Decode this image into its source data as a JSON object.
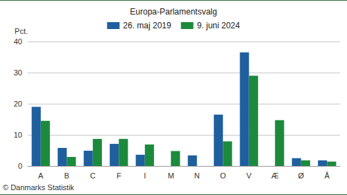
{
  "chart_data": {
    "type": "bar",
    "title": "Europa-Parlamentsvalg",
    "ylabel": "Pct.",
    "annotations": [
      "© Danmarks Statistik"
    ],
    "categories": [
      "A",
      "B",
      "C",
      "F",
      "I",
      "M",
      "N",
      "O",
      "V",
      "Æ",
      "Ø",
      "Å"
    ],
    "series": [
      {
        "name": "26. maj 2019",
        "color": "#1f5f9e",
        "values": [
          19.0,
          5.8,
          4.9,
          7.1,
          3.6,
          null,
          3.4,
          16.5,
          36.5,
          null,
          2.5,
          1.8
        ]
      },
      {
        "name": "9. juni 2024",
        "color": "#1b8a3c",
        "values": [
          14.5,
          2.9,
          8.7,
          8.7,
          6.9,
          4.8,
          null,
          7.9,
          29.0,
          14.7,
          1.8,
          1.4
        ]
      }
    ],
    "ylim": [
      0,
      40
    ],
    "yticks": [
      0,
      10,
      20,
      30,
      40
    ],
    "grid": true,
    "legend": "top"
  }
}
